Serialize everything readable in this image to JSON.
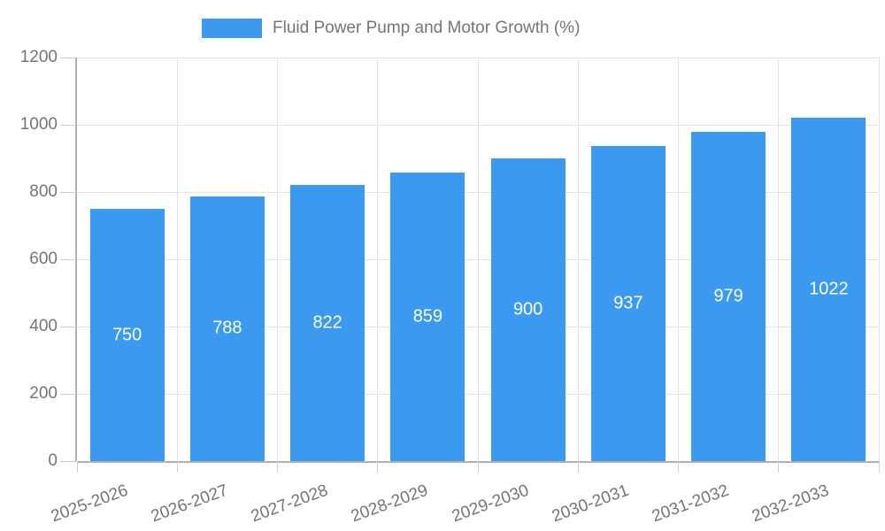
{
  "legend": {
    "label": "Fluid Power Pump and Motor Growth (%)"
  },
  "chart_data": {
    "type": "bar",
    "title": "Fluid Power Pump and Motor Growth (%)",
    "categories": [
      "2025-2026",
      "2026-2027",
      "2027-2028",
      "2028-2029",
      "2029-2030",
      "2030-2031",
      "2031-2032",
      "2032-2033"
    ],
    "values": [
      750,
      788,
      822,
      859,
      900,
      937,
      979,
      1022
    ],
    "xlabel": "",
    "ylabel": "",
    "ylim": [
      0,
      1200
    ],
    "yticks": [
      0,
      200,
      400,
      600,
      800,
      1000,
      1200
    ],
    "grid": true,
    "legend_position": "top-center",
    "value_labels": "inside-center",
    "colors": {
      "bar": "#3b9aef",
      "bar_value_text": "#ffffff",
      "axis_text": "#757575",
      "gridline": "#e3e3e3",
      "axis_line": "#b0b0b0",
      "tick": "#cccccc"
    }
  }
}
